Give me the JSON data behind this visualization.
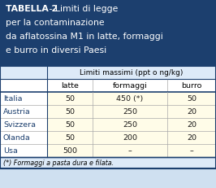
{
  "title_bold_part": "TABELLA 2",
  "title_normal_part": " - Limiti di legge\nper la contaminazione\nda aflatossina M1 in latte, formaggi\ne burro in diversi Paesi",
  "subtitle": "Limiti massimi (ppt o ng/kg)",
  "col_headers": [
    "latte",
    "formaggi",
    "burro"
  ],
  "rows": [
    [
      "Italia",
      "50",
      "450 (*)",
      "50"
    ],
    [
      "Austria",
      "50",
      "250",
      "20"
    ],
    [
      "Svizzera",
      "50",
      "250",
      "20"
    ],
    [
      "Olanda",
      "50",
      "200",
      "20"
    ],
    [
      "Usa",
      "500",
      "–",
      "–"
    ]
  ],
  "footnote": "(*) Formaggi a pasta dura e filata.",
  "header_bg": "#1c3f6e",
  "header_text": "#ffffff",
  "outer_bg": "#cfe0f0",
  "subheader_bg": "#ddeaf8",
  "col_header_bg": "#ffffff",
  "country_cell_bg": "#ffffff",
  "row_bg": "#fffce8",
  "border_dark": "#1c3f6e",
  "border_light": "#aaaaaa",
  "country_text": "#1c3f6e",
  "data_text": "#1c1a1a",
  "footnote_bg": "#ddeaf8",
  "figw": 2.66,
  "figh": 2.32,
  "dpi": 100
}
